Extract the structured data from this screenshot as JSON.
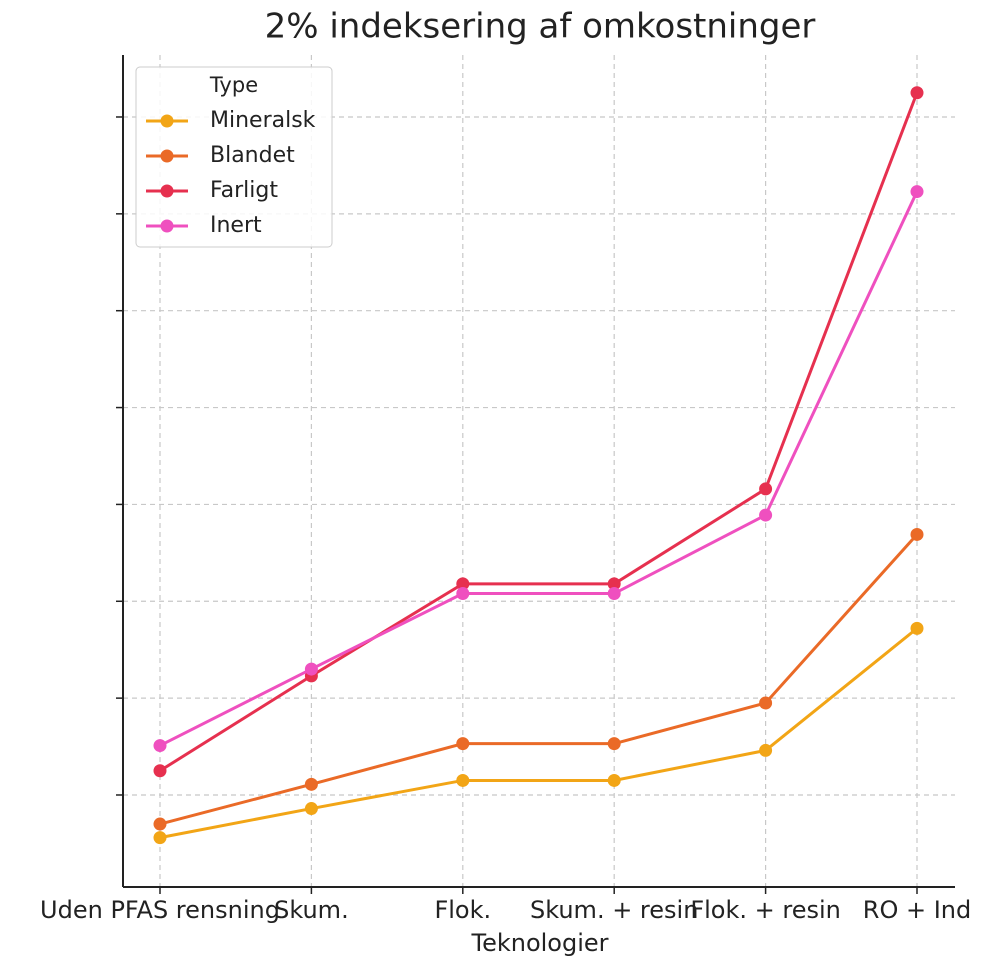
{
  "chart_data": {
    "type": "line",
    "title": "2% indeksering af omkostninger",
    "xlabel": "Teknologier",
    "categories": [
      "Uden PFAS rensning",
      "Skum.",
      "Flok.",
      "Skum. + resin",
      "Flok. + resin",
      "RO + Ind"
    ],
    "series": [
      {
        "name": "Mineralsk",
        "color": "#f2a516",
        "values": [
          0.56,
          0.86,
          1.15,
          1.15,
          1.46,
          2.72
        ]
      },
      {
        "name": "Blandet",
        "color": "#ea6a27",
        "values": [
          0.7,
          1.11,
          1.53,
          1.53,
          1.95,
          3.69
        ]
      },
      {
        "name": "Farligt",
        "color": "#e6304f",
        "values": [
          1.25,
          2.23,
          3.18,
          3.18,
          4.16,
          8.25
        ]
      },
      {
        "name": "Inert",
        "color": "#ef50bf",
        "values": [
          1.51,
          2.3,
          3.08,
          3.08,
          3.89,
          7.23
        ]
      }
    ],
    "legend_title": "Type",
    "legend": "upper left",
    "ylim": [
      0.05,
      8.64
    ],
    "yticks": [
      1,
      2,
      3,
      4,
      5,
      6,
      7,
      8
    ],
    "grid": true
  }
}
